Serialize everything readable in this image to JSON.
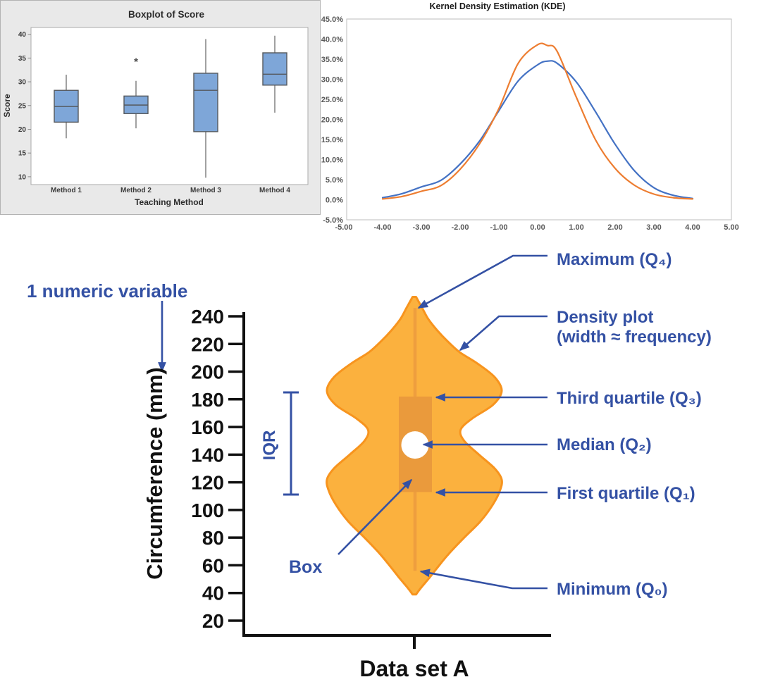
{
  "chart_data": [
    {
      "id": "boxplot",
      "type": "boxplot",
      "title": "Boxplot of Score",
      "xlabel": "Teaching Method",
      "ylabel": "Score",
      "y_ticks": [
        40,
        35,
        30,
        25,
        20,
        15,
        10
      ],
      "ylim": [
        8.3,
        41.5
      ],
      "categories": [
        "Method 1",
        "Method 2",
        "Method 3",
        "Method 4"
      ],
      "stats": [
        {
          "whisker_low": 18.1,
          "q1": 21.5,
          "median": 24.8,
          "q3": 28.2,
          "whisker_high": 31.5,
          "outliers": []
        },
        {
          "whisker_low": 20.2,
          "q1": 23.3,
          "median": 25.1,
          "q3": 27.0,
          "whisker_high": 30.2,
          "outliers": [
            34.7
          ]
        },
        {
          "whisker_low": 9.8,
          "q1": 19.5,
          "median": 28.2,
          "q3": 31.8,
          "whisker_high": 39.0,
          "outliers": []
        },
        {
          "whisker_low": 23.5,
          "q1": 29.3,
          "median": 31.6,
          "q3": 36.1,
          "whisker_high": 39.7,
          "outliers": []
        }
      ],
      "colors": {
        "panel_bg": "#E9E9E9",
        "panel_border": "#B3B3B3",
        "plot_bg": "#FFFFFF",
        "plot_border": "#ABABAB",
        "box_fill": "#7EA6D8",
        "box_stroke": "#55585C",
        "whisker": "#6E6E6E",
        "text": "#2B2B2B",
        "tick_text": "#3A3A3A"
      }
    },
    {
      "id": "kde",
      "type": "line",
      "title": "Kernel Density Estimation (KDE)",
      "x_tick_labels": [
        "-5.00",
        "-4.00",
        "-3.00",
        "-2.00",
        "-1.00",
        "0.00",
        "1.00",
        "2.00",
        "3.00",
        "4.00",
        "5.00"
      ],
      "y_tick_labels": [
        "45.0%",
        "40.0%",
        "35.0%",
        "30.0%",
        "25.0%",
        "20.0%",
        "15.0%",
        "10.0%",
        "5.0%",
        "0.0%",
        "-5.0%"
      ],
      "xlim": [
        -5,
        5
      ],
      "ylim_percent": [
        -5,
        45
      ],
      "grid": false,
      "legend": "none",
      "x": [
        -4,
        -3.5,
        -3,
        -2.5,
        -2,
        -1.5,
        -1,
        -0.5,
        0,
        0.25,
        0.5,
        1,
        1.5,
        2,
        2.5,
        3,
        3.5,
        4
      ],
      "series": [
        {
          "name": "kde-series-blue",
          "color": "#4472C4",
          "values_percent": [
            0.5,
            1.5,
            3.2,
            4.8,
            8.9,
            14.6,
            22.2,
            29.6,
            33.6,
            34.5,
            34.0,
            29.3,
            21.8,
            13.8,
            7.2,
            3.0,
            1.1,
            0.3
          ]
        },
        {
          "name": "kde-series-orange",
          "color": "#ED7D31",
          "values_percent": [
            0.2,
            0.8,
            2.1,
            3.5,
            7.6,
            13.9,
            22.7,
            34.0,
            38.6,
            38.4,
            37.0,
            25.5,
            14.8,
            7.8,
            3.6,
            1.4,
            0.5,
            0.2
          ]
        }
      ],
      "colors": {
        "title": "#1A1A1A",
        "tick_text": "#595959",
        "frame": "#BDBDBD",
        "bg": "#FFFFFF"
      }
    },
    {
      "id": "violin-diagram",
      "type": "violin",
      "x_category": "Data set A",
      "ylabel": "Circumference (mm)",
      "y_ticks": [
        240,
        220,
        200,
        180,
        160,
        140,
        120,
        100,
        80,
        60,
        40,
        20
      ],
      "quartiles": {
        "q0_min": 56,
        "q1": 113,
        "q2_median": 147,
        "q3": 182,
        "q4_max": 246
      },
      "density_profile_value_halfwidth": [
        [
          254,
          0.02
        ],
        [
          246,
          0.09
        ],
        [
          238,
          0.16
        ],
        [
          230,
          0.26
        ],
        [
          222,
          0.38
        ],
        [
          214,
          0.52
        ],
        [
          206,
          0.72
        ],
        [
          196,
          0.92
        ],
        [
          186,
          1.0
        ],
        [
          176,
          0.9
        ],
        [
          166,
          0.66
        ],
        [
          158,
          0.53
        ],
        [
          150,
          0.57
        ],
        [
          140,
          0.74
        ],
        [
          130,
          0.92
        ],
        [
          122,
          1.0
        ],
        [
          114,
          0.98
        ],
        [
          104,
          0.9
        ],
        [
          92,
          0.76
        ],
        [
          80,
          0.57
        ],
        [
          68,
          0.39
        ],
        [
          58,
          0.26
        ],
        [
          50,
          0.16
        ],
        [
          44,
          0.08
        ],
        [
          39,
          0.02
        ]
      ],
      "labels": {
        "numeric_variable": "1 numeric variable",
        "iqr": "IQR",
        "box": "Box",
        "maximum": "Maximum (Q₄)",
        "density_line1": "Density plot",
        "density_line2": "(width ≈ frequency)",
        "third_quartile": "Third quartile (Q₃)",
        "median": "Median (Q₂)",
        "first_quartile": "First quartile (Q₁)",
        "minimum": "Minimum (Q₀)"
      },
      "colors": {
        "violin_fill": "#FBB13E",
        "violin_stroke": "#F7941E",
        "box_fill": "#EA9A3C",
        "center_line": "#EE9E3E",
        "median_circle": "#FFFFFF",
        "annotation_blue": "#3451A4",
        "axis_black": "#111111"
      }
    }
  ]
}
